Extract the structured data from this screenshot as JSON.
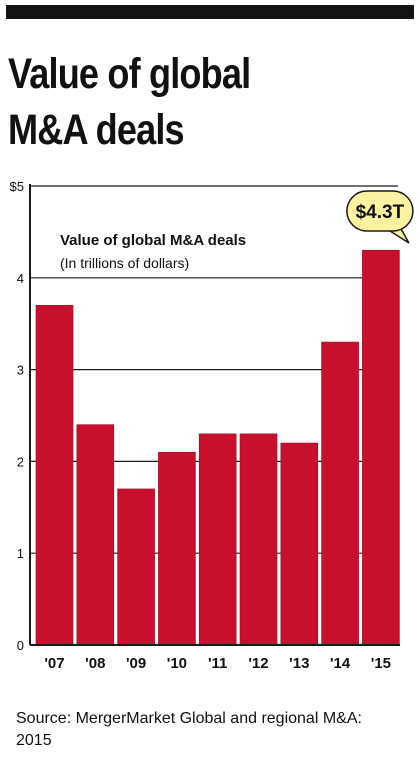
{
  "header": {
    "title_line1": "Value of global",
    "title_line2": "M&A deals"
  },
  "colors": {
    "bar": "#c8102e",
    "bar_edge": "#9b0d22",
    "axis": "#1a1a1a",
    "grid": "#1a1a1a",
    "text": "#111111"
  },
  "chart_data": {
    "type": "bar",
    "title": "Value of global M&A deals",
    "subtitle": "(In trillions of dollars)",
    "categories": [
      "'07",
      "'08",
      "'09",
      "'10",
      "'11",
      "'12",
      "'13",
      "'14",
      "'15"
    ],
    "values": [
      3.7,
      2.4,
      1.7,
      2.1,
      2.3,
      2.3,
      2.2,
      3.3,
      4.3
    ],
    "ylim": [
      0,
      5
    ],
    "yticks": [
      0,
      1,
      2,
      3,
      4,
      5
    ],
    "ytick_labels": [
      "0",
      "1",
      "2",
      "3",
      "4",
      "$5"
    ],
    "grid": true,
    "annotation": {
      "text": "$4.3T",
      "category": "'15"
    }
  },
  "footer": {
    "source": "Source: MergerMarket Global and regional M&A: 2015"
  }
}
